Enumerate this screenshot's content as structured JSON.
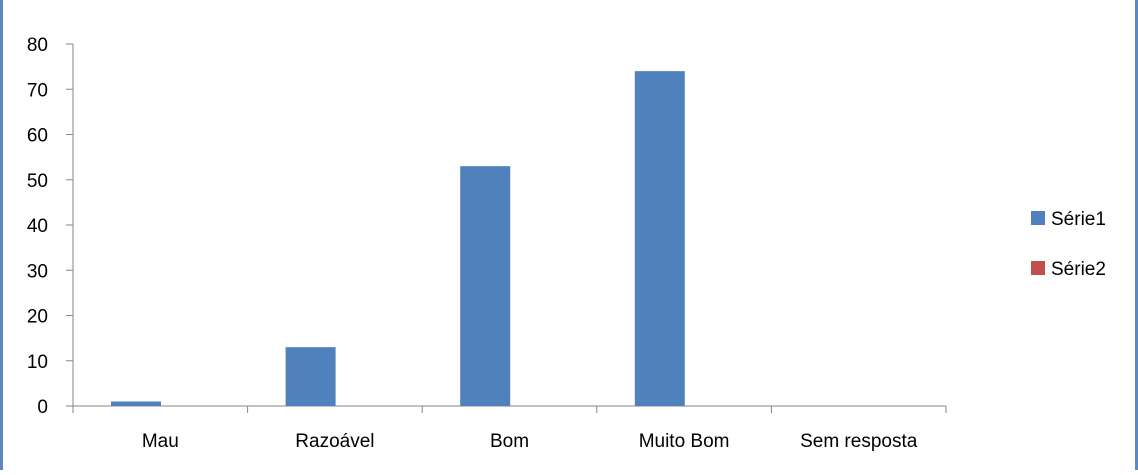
{
  "colors": {
    "frame": "#5a88c0",
    "axis": "#868686",
    "series1": "#4f81bd",
    "series2": "#c0504d"
  },
  "chart_data": {
    "type": "bar",
    "title": "",
    "xlabel": "",
    "ylabel": "",
    "categories": [
      "Mau",
      "Razoável",
      "Bom",
      "Muito Bom",
      "Sem resposta"
    ],
    "series": [
      {
        "name": "Série1",
        "values": [
          1,
          13,
          53,
          74,
          0
        ]
      },
      {
        "name": "Série2",
        "values": [
          0,
          0,
          0,
          0,
          0
        ]
      }
    ],
    "ylim": [
      0,
      80
    ],
    "yticks": [
      0,
      10,
      20,
      30,
      40,
      50,
      60,
      70,
      80
    ],
    "grid": false,
    "legend_position": "right"
  }
}
